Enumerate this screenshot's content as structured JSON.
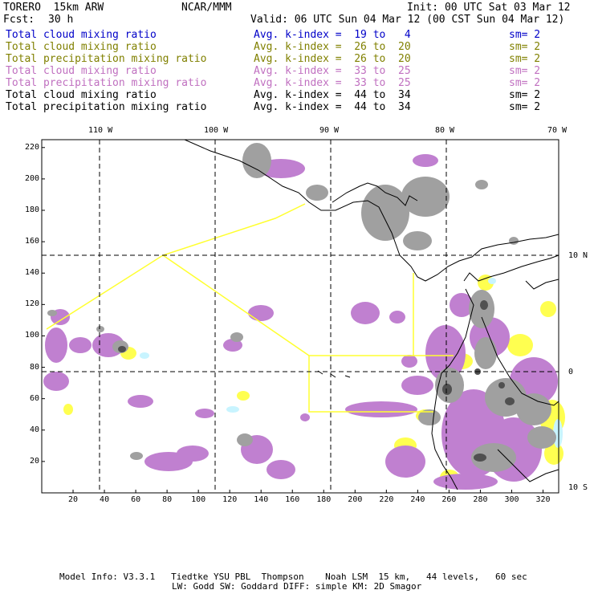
{
  "header": {
    "model": "TORERO  15km ARW",
    "center": "NCAR/MMM",
    "init": "Init: 00 UTC Sat 03 Mar 12",
    "fcst_label": "Fcst:",
    "fcst_value": "30 h",
    "valid": "Valid: 06 UTC Sun 04 Mar 12 (00 CST Sun 04 Mar 12)"
  },
  "legend": [
    {
      "field": "Total cloud mixing ratio",
      "k": "Avg. k-index =  19 to   4",
      "sm": "sm= 2",
      "color": "#0000c8"
    },
    {
      "field": "Total cloud mixing ratio",
      "k": "Avg. k-index =  26 to  20",
      "sm": "sm= 2",
      "color": "#808000"
    },
    {
      "field": "Total precipitation mixing ratio",
      "k": "Avg. k-index =  26 to  20",
      "sm": "sm= 2",
      "color": "#808000"
    },
    {
      "field": "Total cloud mixing ratio",
      "k": "Avg. k-index =  33 to  25",
      "sm": "sm= 2",
      "color": "#c070c0"
    },
    {
      "field": "Total precipitation mixing ratio",
      "k": "Avg. k-index =  33 to  25",
      "sm": "sm= 2",
      "color": "#c070c0"
    },
    {
      "field": "Total cloud mixing ratio",
      "k": "Avg. k-index =  44 to  34",
      "sm": "sm= 2",
      "color": "#000000"
    },
    {
      "field": "Total precipitation mixing ratio",
      "k": "Avg. k-index =  44 to  34",
      "sm": "sm= 2",
      "color": "#000000"
    }
  ],
  "map": {
    "grid_x_labels": [
      "20",
      "40",
      "60",
      "80",
      "100",
      "120",
      "140",
      "160",
      "180",
      "200",
      "220",
      "240",
      "260",
      "280",
      "300",
      "320"
    ],
    "grid_y_labels": [
      "20",
      "40",
      "60",
      "80",
      "100",
      "120",
      "140",
      "160",
      "180",
      "200",
      "220"
    ],
    "lon_labels": [
      "110 W",
      "100 W",
      "90 W",
      "80 W",
      "70 W"
    ],
    "lat_labels": [
      "10 N",
      "0",
      "10 S"
    ],
    "colors": {
      "purple": "#c080d0",
      "gray": "#a0a0a0",
      "dark": "#505050",
      "yellow": "#ffff50",
      "cyan": "#c8f4ff",
      "domain_line": "#ffff30"
    }
  },
  "footer": {
    "line1": "Model Info: V3.3.1   Tiedtke YSU PBL  Thompson    Noah LSM  15 km,   44 levels,   60 sec",
    "line2": "LW: Godd SW: Goddard DIFF: simple KM: 2D Smagor"
  }
}
